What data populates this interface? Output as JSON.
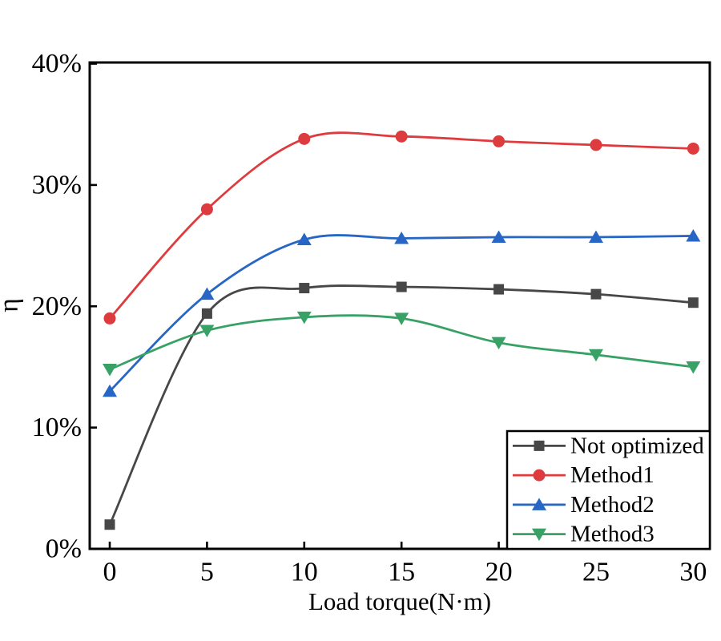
{
  "chart_data": {
    "type": "line",
    "title": "",
    "xlabel": "Load torque(N·m)",
    "ylabel": "η",
    "x": [
      0,
      5,
      10,
      15,
      20,
      25,
      30
    ],
    "x_ticks": [
      0,
      5,
      10,
      15,
      20,
      25,
      30
    ],
    "y_ticks": [
      {
        "value": 0,
        "label": "0%"
      },
      {
        "value": 10,
        "label": "10%"
      },
      {
        "value": 20,
        "label": "20%"
      },
      {
        "value": 30,
        "label": "30%"
      },
      {
        "value": 40,
        "label": "40%"
      }
    ],
    "xlim": [
      -1.03,
      30.85
    ],
    "ylim": [
      0,
      40.1
    ],
    "grid": false,
    "legend_position": "bottom-right",
    "series": [
      {
        "name": "Not optimized",
        "color": "#474747",
        "marker": "square",
        "values": [
          2,
          19.4,
          21.5,
          21.6,
          21.4,
          21,
          20.3
        ]
      },
      {
        "name": "Method1",
        "color": "#de3b3e",
        "marker": "circle",
        "values": [
          19,
          28,
          33.8,
          34,
          33.6,
          33.3,
          33
        ]
      },
      {
        "name": "Method2",
        "color": "#2766c4",
        "marker": "triangle-up",
        "values": [
          13,
          21,
          25.5,
          25.6,
          25.7,
          25.7,
          25.8
        ]
      },
      {
        "name": "Method3",
        "color": "#38a266",
        "marker": "triangle-down",
        "values": [
          14.8,
          18,
          19.1,
          19,
          17,
          16,
          15
        ]
      }
    ]
  }
}
